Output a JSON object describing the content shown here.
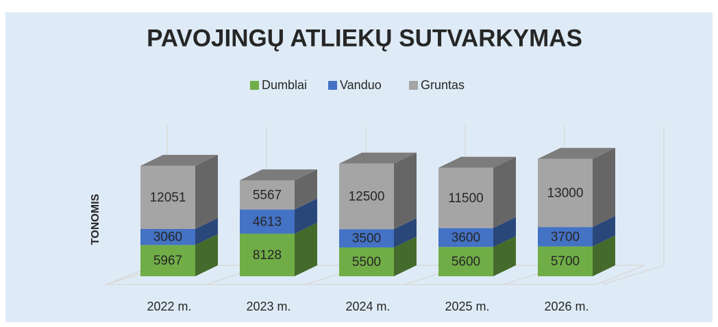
{
  "chart_data": {
    "type": "bar3d-stacked",
    "title": "PAVOJINGŲ ATLIEKŲ SUTVARKYMAS",
    "y_label": "TONOMIS",
    "categories": [
      "2022 m.",
      "2023 m.",
      "2024 m.",
      "2025 m.",
      "2026 m."
    ],
    "series": [
      {
        "name": "Dumblai",
        "color": "#70ad47",
        "values": [
          5967,
          8128,
          5500,
          5600,
          5700
        ]
      },
      {
        "name": "Vanduo",
        "color": "#4472c4",
        "values": [
          3060,
          4613,
          3500,
          3600,
          3700
        ]
      },
      {
        "name": "Gruntas",
        "color": "#a5a5a5",
        "values": [
          12051,
          5567,
          12500,
          11500,
          13000
        ]
      }
    ],
    "ylim": [
      0,
      28000
    ],
    "legend": "top"
  }
}
